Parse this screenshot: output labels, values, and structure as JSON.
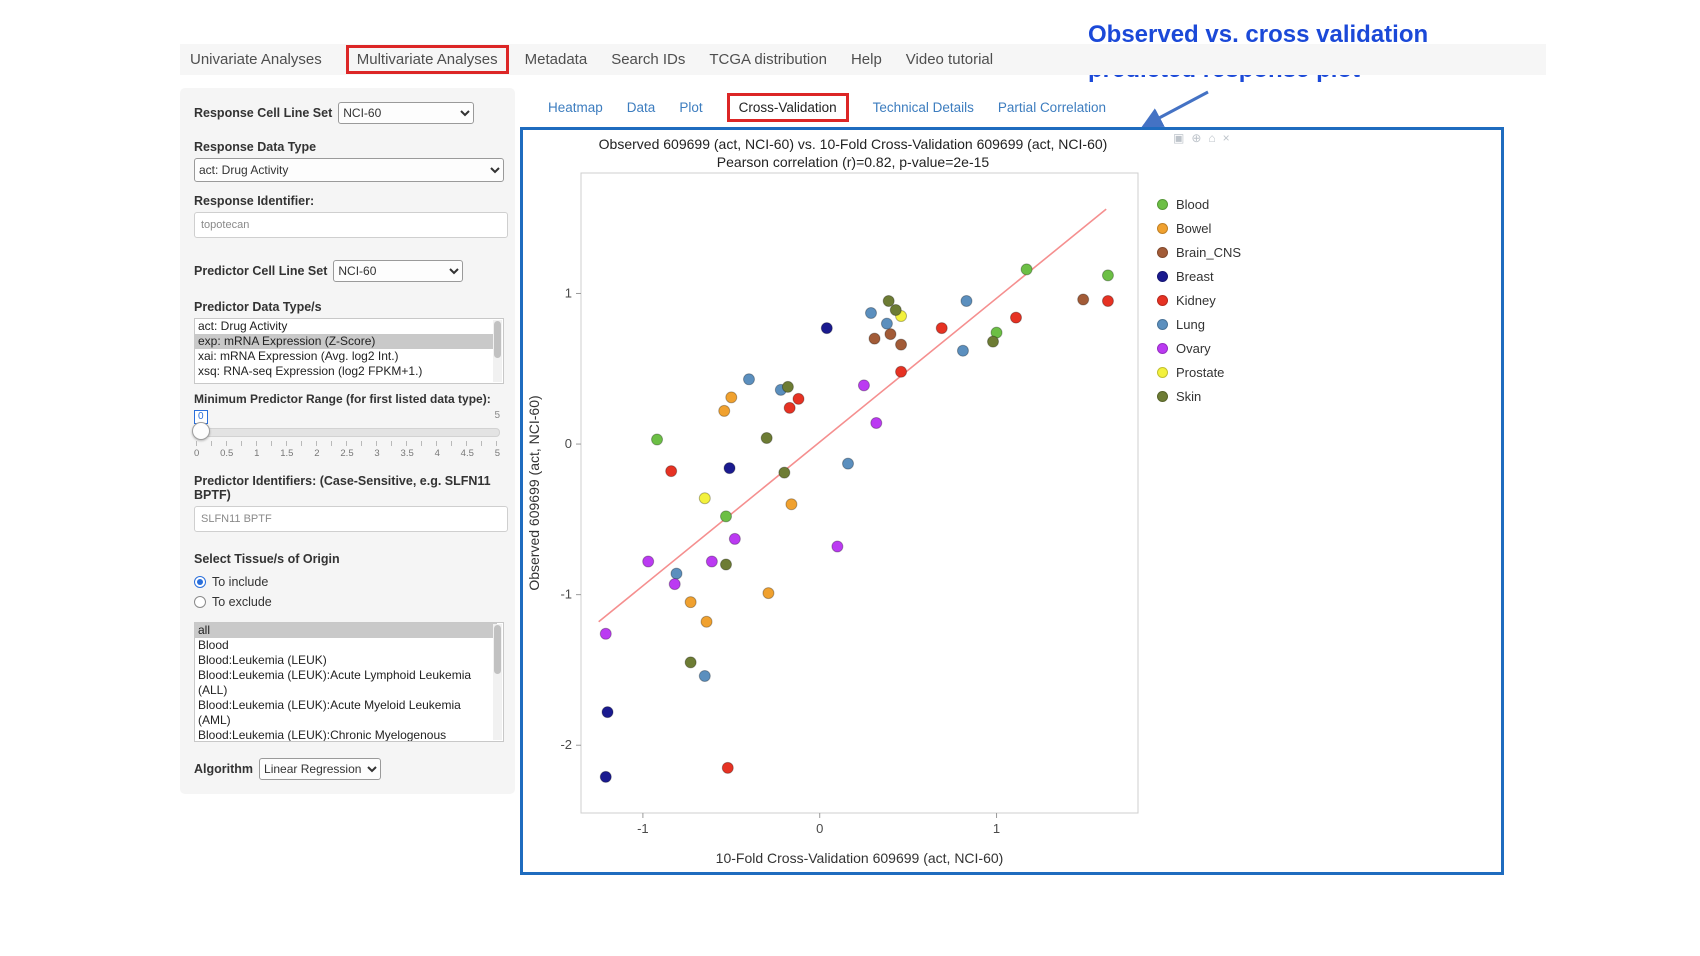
{
  "nav": {
    "items": [
      {
        "label": "Univariate Analyses",
        "active": false
      },
      {
        "label": "Multivariate Analyses",
        "active": true
      },
      {
        "label": "Metadata",
        "active": false
      },
      {
        "label": "Search IDs",
        "active": false
      },
      {
        "label": "TCGA distribution",
        "active": false
      },
      {
        "label": "Help",
        "active": false
      },
      {
        "label": "Video tutorial",
        "active": false
      }
    ]
  },
  "annotation": {
    "line1": "Observed vs. cross validation",
    "line2": "predicted response plot",
    "color": "#1b49d8"
  },
  "sidebar": {
    "response_cell_line_set": {
      "label": "Response Cell Line Set",
      "value": "NCI-60"
    },
    "response_data_type": {
      "label": "Response Data Type",
      "value": "act: Drug Activity"
    },
    "response_identifier": {
      "label": "Response Identifier:",
      "value": "topotecan"
    },
    "predictor_cell_line_set": {
      "label": "Predictor Cell Line Set",
      "value": "NCI-60"
    },
    "predictor_data_types": {
      "label": "Predictor Data Type/s",
      "options": [
        "act: Drug Activity",
        "exp: mRNA Expression (Z-Score)",
        "xai: mRNA Expression (Avg. log2 Int.)",
        "xsq: RNA-seq Expression (log2 FPKM+1.)"
      ],
      "selected": "exp: mRNA Expression (Z-Score)"
    },
    "min_predictor_range": {
      "label": "Minimum Predictor Range (for first listed data type):",
      "value": "0",
      "max": "5",
      "ticks": [
        "0",
        "0.5",
        "1",
        "1.5",
        "2",
        "2.5",
        "3",
        "3.5",
        "4",
        "4.5",
        "5"
      ]
    },
    "predictor_identifiers": {
      "label": "Predictor Identifiers: (Case-Sensitive, e.g. SLFN11 BPTF)",
      "value": "SLFN11 BPTF"
    },
    "tissue_origin": {
      "label": "Select Tissue/s of Origin",
      "radio_include": "To include",
      "radio_exclude": "To exclude",
      "selected_radio": "include",
      "options": [
        "all",
        "Blood",
        "Blood:Leukemia (LEUK)",
        "Blood:Leukemia (LEUK):Acute Lymphoid Leukemia (ALL)",
        "Blood:Leukemia (LEUK):Acute Myeloid Leukemia (AML)",
        "Blood:Leukemia (LEUK):Chronic Myelogenous Leukemia (CML)"
      ],
      "selected": "all"
    },
    "algorithm": {
      "label": "Algorithm",
      "value": "Linear Regression"
    }
  },
  "subtabs": {
    "items": [
      {
        "label": "Heatmap",
        "active": false
      },
      {
        "label": "Data",
        "active": false
      },
      {
        "label": "Plot",
        "active": false
      },
      {
        "label": "Cross-Validation",
        "active": true
      },
      {
        "label": "Technical Details",
        "active": false
      },
      {
        "label": "Partial Correlation",
        "active": false
      }
    ]
  },
  "modebar": {
    "icons": [
      {
        "name": "camera-icon",
        "glyph": "▣"
      },
      {
        "name": "zoom-icon",
        "glyph": "⊕"
      },
      {
        "name": "reset-axes-icon",
        "glyph": "⌂"
      },
      {
        "name": "close-icon",
        "glyph": "×"
      }
    ]
  },
  "chart_data": {
    "type": "scatter",
    "title": "Observed 609699 (act, NCI-60) vs. 10-Fold Cross-Validation 609699 (act, NCI-60)",
    "subtitle": "Pearson correlation (r)=0.82, p-value=2e-15",
    "xlabel": "10-Fold Cross-Validation 609699 (act, NCI-60)",
    "ylabel": "Observed 609699 (act, NCI-60)",
    "xlim": [
      -1.35,
      1.8
    ],
    "ylim": [
      -2.45,
      1.8
    ],
    "xticks": [
      -1,
      0,
      1
    ],
    "yticks": [
      -2,
      -1,
      0,
      1
    ],
    "grid": false,
    "legend_position": "right",
    "trend_line": {
      "color": "#f58f8f",
      "points": [
        [
          -1.25,
          -1.18
        ],
        [
          1.62,
          1.56
        ]
      ]
    },
    "series": [
      {
        "name": "Blood",
        "color": "#6cbf45",
        "points": [
          [
            -0.92,
            0.03
          ],
          [
            -0.53,
            -0.48
          ],
          [
            1.0,
            0.74
          ],
          [
            1.17,
            1.16
          ],
          [
            1.63,
            1.12
          ]
        ]
      },
      {
        "name": "Bowel",
        "color": "#f0a12f",
        "points": [
          [
            -0.54,
            0.22
          ],
          [
            -0.5,
            0.31
          ],
          [
            -0.16,
            -0.4
          ],
          [
            -0.29,
            -0.99
          ],
          [
            -0.73,
            -1.05
          ],
          [
            -0.64,
            -1.18
          ]
        ]
      },
      {
        "name": "Brain_CNS",
        "color": "#a25b37",
        "points": [
          [
            0.31,
            0.7
          ],
          [
            0.4,
            0.73
          ],
          [
            0.46,
            0.66
          ],
          [
            1.49,
            0.96
          ]
        ]
      },
      {
        "name": "Breast",
        "color": "#1a1a8f",
        "points": [
          [
            0.04,
            0.77
          ],
          [
            -0.51,
            -0.16
          ],
          [
            -1.2,
            -1.78
          ],
          [
            -1.21,
            -2.21
          ]
        ]
      },
      {
        "name": "Kidney",
        "color": "#e63223",
        "points": [
          [
            -0.84,
            -0.18
          ],
          [
            -0.17,
            0.24
          ],
          [
            -0.12,
            0.3
          ],
          [
            0.46,
            0.48
          ],
          [
            0.69,
            0.77
          ],
          [
            1.11,
            0.84
          ],
          [
            1.63,
            0.95
          ],
          [
            -0.52,
            -2.15
          ]
        ]
      },
      {
        "name": "Lung",
        "color": "#5b8fbe",
        "points": [
          [
            -0.4,
            0.43
          ],
          [
            -0.22,
            0.36
          ],
          [
            0.29,
            0.87
          ],
          [
            0.38,
            0.8
          ],
          [
            0.83,
            0.95
          ],
          [
            0.81,
            0.62
          ],
          [
            0.16,
            -0.13
          ],
          [
            -0.81,
            -0.86
          ],
          [
            -0.65,
            -1.54
          ]
        ]
      },
      {
        "name": "Ovary",
        "color": "#bb3af2",
        "points": [
          [
            -1.21,
            -1.26
          ],
          [
            -0.97,
            -0.78
          ],
          [
            -0.82,
            -0.93
          ],
          [
            -0.61,
            -0.78
          ],
          [
            -0.48,
            -0.63
          ],
          [
            0.1,
            -0.68
          ],
          [
            0.25,
            0.39
          ],
          [
            0.32,
            0.14
          ]
        ]
      },
      {
        "name": "Prostate",
        "color": "#f3f13c",
        "points": [
          [
            -0.65,
            -0.36
          ],
          [
            0.46,
            0.85
          ]
        ]
      },
      {
        "name": "Skin",
        "color": "#6d7c34",
        "points": [
          [
            0.39,
            0.95
          ],
          [
            0.43,
            0.89
          ],
          [
            0.98,
            0.68
          ],
          [
            -0.3,
            0.04
          ],
          [
            -0.18,
            0.38
          ],
          [
            -0.2,
            -0.19
          ],
          [
            -0.53,
            -0.8
          ],
          [
            -0.73,
            -1.45
          ]
        ]
      }
    ]
  }
}
